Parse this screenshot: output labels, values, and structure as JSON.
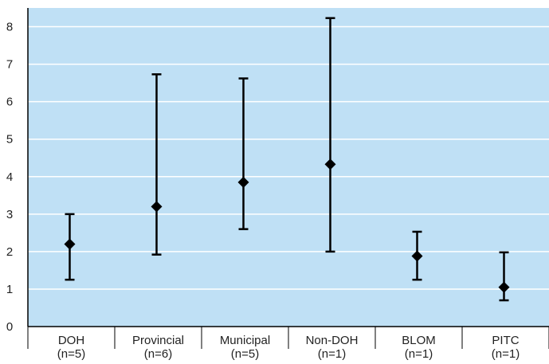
{
  "chart_data": {
    "type": "scatter",
    "title": "",
    "xlabel": "",
    "ylabel": "",
    "ylim": [
      0,
      8.5
    ],
    "yticks": [
      "0",
      "1",
      "2",
      "3",
      "4",
      "5",
      "6",
      "7",
      "8"
    ],
    "grid": true,
    "categories": [
      {
        "name": "DOH",
        "sub": "(n=5)"
      },
      {
        "name": "Provincial",
        "sub": "(n=6)"
      },
      {
        "name": "Municipal",
        "sub": "(n=5)"
      },
      {
        "name": "Non-DOH",
        "sub": "(n=1)"
      },
      {
        "name": "BLOM",
        "sub": "(n=1)"
      },
      {
        "name": "PITC",
        "sub": "(n=1)"
      }
    ],
    "series": [
      {
        "mean": [
          2.2,
          3.2,
          3.85,
          4.33,
          1.88,
          1.05
        ],
        "low": [
          1.25,
          1.92,
          2.6,
          2.0,
          1.25,
          0.7
        ],
        "high": [
          3.0,
          6.73,
          6.62,
          8.23,
          2.53,
          1.98
        ]
      }
    ],
    "colors": {
      "plot_bg": "#bfe0f5",
      "grid": "#ffffff",
      "marks": "#000000"
    }
  }
}
